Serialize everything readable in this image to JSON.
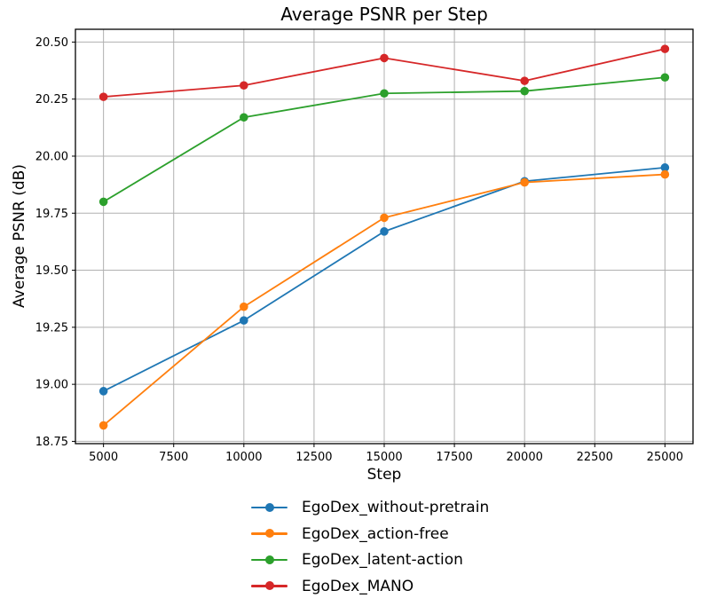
{
  "chart_data": {
    "type": "line",
    "title": "Average PSNR per Step",
    "xlabel": "Step",
    "ylabel": "Average PSNR (dB)",
    "x": [
      5000,
      10000,
      15000,
      20000,
      25000
    ],
    "series": [
      {
        "name": "EgoDex_without-pretrain",
        "color": "#1f77b4",
        "marker": "circle",
        "values": [
          18.97,
          19.28,
          19.67,
          19.89,
          19.95
        ]
      },
      {
        "name": "EgoDex_action-free",
        "color": "#ff7f0e",
        "marker": "circle",
        "values": [
          18.82,
          19.34,
          19.73,
          19.885,
          19.92
        ]
      },
      {
        "name": "EgoDex_latent-action",
        "color": "#2ca02c",
        "marker": "circle",
        "values": [
          19.8,
          20.17,
          20.275,
          20.285,
          20.345
        ]
      },
      {
        "name": "EgoDex_MANO",
        "color": "#d62728",
        "marker": "circle",
        "values": [
          20.26,
          20.31,
          20.43,
          20.33,
          20.47
        ]
      }
    ],
    "xlim": [
      4000,
      26000
    ],
    "ylim": [
      18.74,
      20.556
    ],
    "xticks": [
      5000,
      7500,
      10000,
      12500,
      15000,
      17500,
      20000,
      22500,
      25000
    ],
    "xtick_labels": [
      "5000",
      "7500",
      "10000",
      "12500",
      "15000",
      "17500",
      "20000",
      "22500",
      "25000"
    ],
    "yticks": [
      18.75,
      19.0,
      19.25,
      19.5,
      19.75,
      20.0,
      20.25,
      20.5
    ],
    "ytick_labels": [
      "18.75",
      "19.00",
      "19.25",
      "19.50",
      "19.75",
      "20.00",
      "20.25",
      "20.50"
    ],
    "grid": true,
    "legend_position": "below-center",
    "colors": {
      "background": "#ffffff",
      "grid": "#b0b0b0",
      "spine": "#000000",
      "text": "#000000"
    }
  }
}
